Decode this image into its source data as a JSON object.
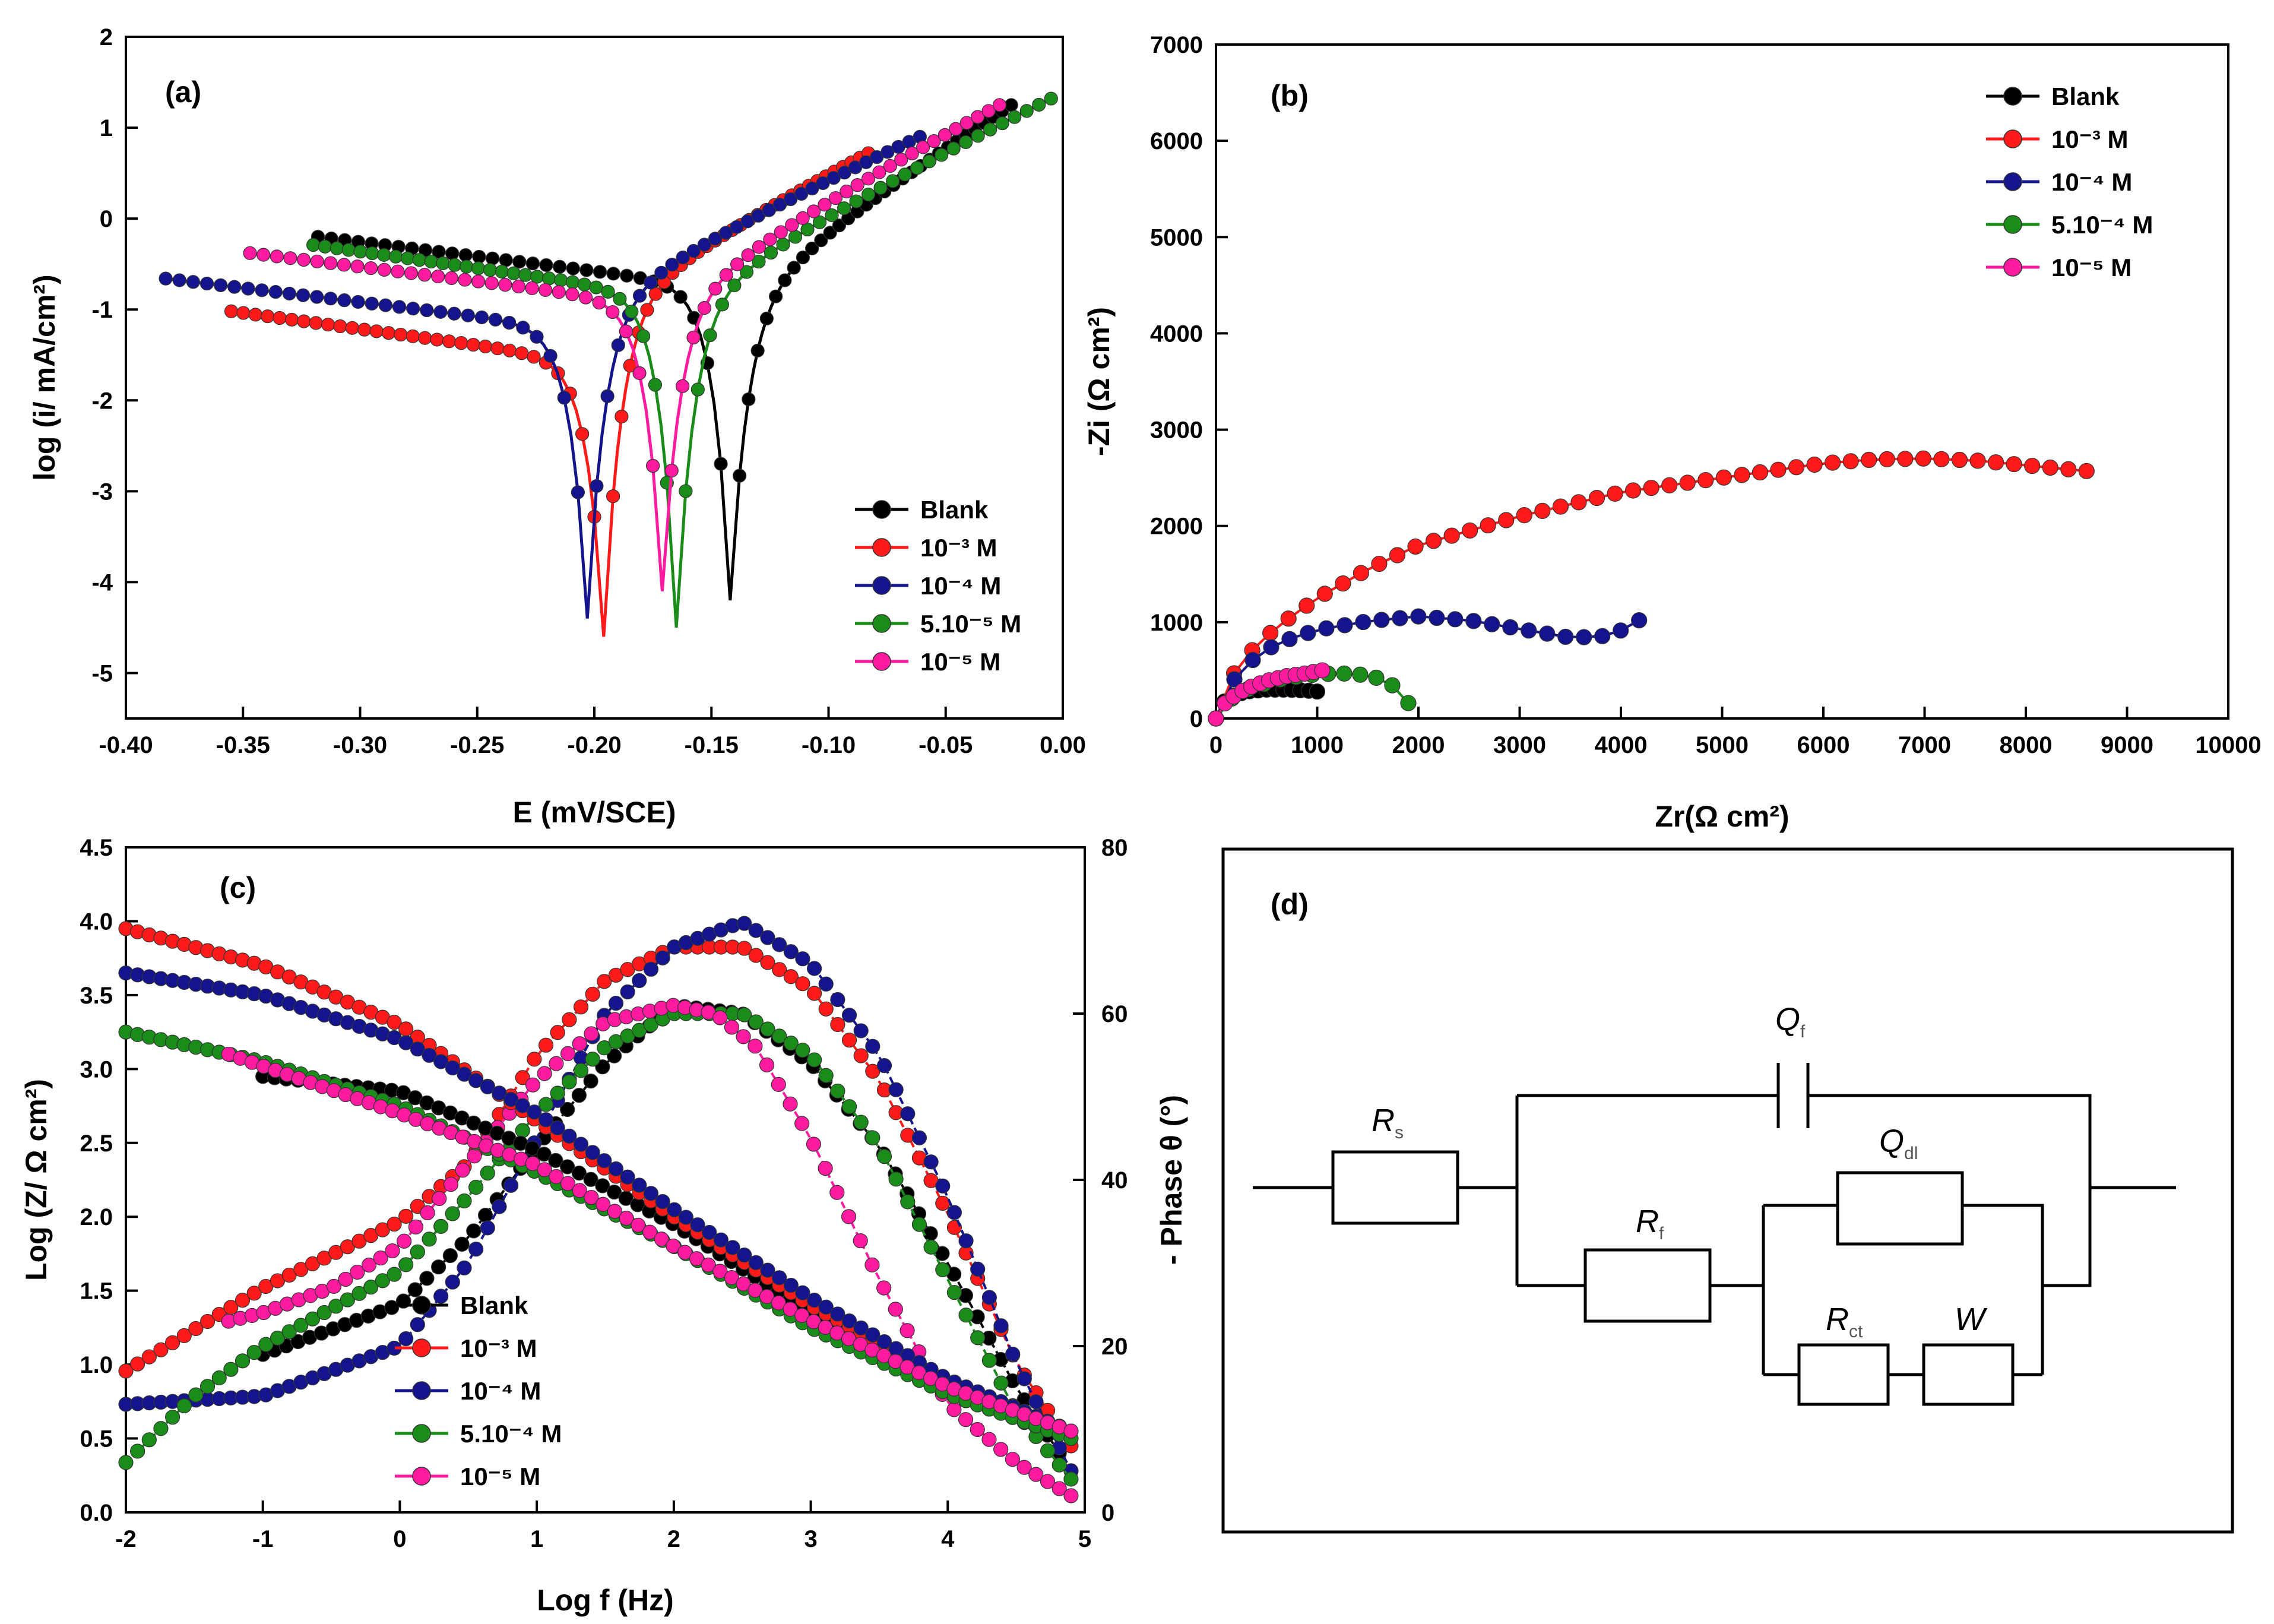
{
  "colors": {
    "Blank": "#000000",
    "1e-3": "#ff1a1a",
    "1e-4": "#14148c",
    "5e-4": "#1a8c1a",
    "1e-5": "#ff1aa0"
  },
  "chart_data": [
    {
      "panel": "(a)",
      "type": "line",
      "title": "(a)",
      "xlabel": "E (mV/SCE)",
      "ylabel": "log (i/ mA/cm²)",
      "xlim": [
        -0.4,
        0.0
      ],
      "ylim": [
        -5.5,
        2.0
      ],
      "xticks": [
        "-0.40",
        "-0.35",
        "-0.30",
        "-0.25",
        "-0.20",
        "-0.15",
        "-0.10",
        "-0.05",
        "0.00"
      ],
      "yticks": [
        "-5",
        "-4",
        "-3",
        "-2",
        "-1",
        "0",
        "1",
        "2"
      ],
      "legend": [
        "Blank",
        "10⁻³ M",
        "10⁻⁴ M",
        "5.10⁻⁵ M",
        "10⁻⁵ M"
      ],
      "series": [
        {
          "name": "Blank",
          "color": "Blank",
          "ecorr": -0.142,
          "start": [
            -0.318,
            -0.2
          ],
          "min": -4.2,
          "end": [
            -0.022,
            1.25
          ]
        },
        {
          "name": "10⁻³ M",
          "color": "1e-3",
          "ecorr": -0.196,
          "start": [
            -0.355,
            -1.02
          ],
          "min": -4.6,
          "end": [
            -0.083,
            0.72
          ]
        },
        {
          "name": "10⁻⁴ M",
          "color": "1e-4",
          "ecorr": -0.203,
          "start": [
            -0.383,
            -0.66
          ],
          "min": -4.4,
          "end": [
            -0.061,
            0.9
          ]
        },
        {
          "name": "5.10⁻⁵ M",
          "color": "5e-4",
          "ecorr": -0.165,
          "start": [
            -0.32,
            -0.29
          ],
          "min": -4.5,
          "end": [
            -0.005,
            1.32
          ]
        },
        {
          "name": "10⁻⁵ M",
          "color": "1e-5",
          "ecorr": -0.171,
          "start": [
            -0.347,
            -0.38
          ],
          "min": -4.1,
          "end": [
            -0.027,
            1.25
          ]
        }
      ]
    },
    {
      "panel": "(b)",
      "type": "line",
      "title": "(b)",
      "xlabel": "Zr(Ω cm²)",
      "ylabel": "-Zi (Ω cm²)",
      "xlim": [
        0,
        10000
      ],
      "ylim": [
        0,
        7000
      ],
      "xticks": [
        "0",
        "1000",
        "2000",
        "3000",
        "4000",
        "5000",
        "6000",
        "7000",
        "8000",
        "9000",
        "10000"
      ],
      "yticks": [
        "0",
        "1000",
        "2000",
        "3000",
        "4000",
        "5000",
        "6000",
        "7000"
      ],
      "legend": [
        "Blank",
        "10⁻³ M",
        "10⁻⁴ M",
        "5.10⁻⁴ M",
        "10⁻⁵ M"
      ],
      "series": [
        {
          "name": "Blank",
          "color": "Blank",
          "x": [
            0,
            50,
            150,
            300,
            500,
            700,
            900,
            1000
          ],
          "y": [
            0,
            150,
            230,
            280,
            300,
            300,
            290,
            280
          ]
        },
        {
          "name": "10⁻³ M",
          "color": "1e-3",
          "x": [
            0,
            100,
            300,
            600,
            1000,
            1500,
            2000,
            3000,
            4000,
            5000,
            6000,
            6500,
            7000,
            7500,
            8000,
            8600
          ],
          "y": [
            0,
            350,
            650,
            950,
            1250,
            1550,
            1800,
            2100,
            2350,
            2500,
            2650,
            2690,
            2700,
            2680,
            2630,
            2570
          ]
        },
        {
          "name": "10⁻⁴ M",
          "color": "1e-4",
          "x": [
            0,
            100,
            300,
            600,
            1000,
            1500,
            2000,
            2500,
            3000,
            3500,
            3800,
            4050,
            4180
          ],
          "y": [
            0,
            300,
            560,
            780,
            920,
            1010,
            1060,
            1020,
            930,
            840,
            850,
            930,
            1020
          ]
        },
        {
          "name": "5.10⁻⁴ M",
          "color": "5e-4",
          "x": [
            0,
            100,
            300,
            600,
            900,
            1200,
            1400,
            1600,
            1750,
            1850,
            1900
          ],
          "y": [
            0,
            170,
            300,
            400,
            450,
            470,
            460,
            420,
            340,
            250,
            160
          ]
        },
        {
          "name": "10⁻⁵ M",
          "color": "1e-5",
          "x": [
            0,
            100,
            300,
            500,
            700,
            900,
            1050
          ],
          "y": [
            0,
            180,
            310,
            390,
            440,
            470,
            500
          ]
        }
      ]
    },
    {
      "panel": "(c)",
      "type": "line",
      "title": "(c)",
      "xlabel": "Log f (Hz)",
      "ylabel": "Log (Z/ Ω cm²)",
      "y2label": "- Phase θ (°)",
      "xlim": [
        -2,
        5
      ],
      "ylim": [
        0.0,
        4.5
      ],
      "y2lim": [
        0,
        80
      ],
      "xticks": [
        "-2",
        "-1",
        "0",
        "1",
        "2",
        "3",
        "4",
        "5"
      ],
      "yticks": [
        "0.0",
        "0.5",
        "1.0",
        "1.5",
        "2.0",
        "2.5",
        "3.0",
        "3.5",
        "4.0",
        "4.5"
      ],
      "y2ticks": [
        "0",
        "20",
        "40",
        "60",
        "80"
      ],
      "legend": [
        "Blank",
        "10⁻³ M",
        "10⁻⁴ M",
        "5.10⁻⁴ M",
        "10⁻⁵ M"
      ],
      "modulus": [
        {
          "name": "Blank",
          "color": "Blank",
          "x": [
            -1,
            0,
            1,
            2,
            3,
            4,
            4.9
          ],
          "y": [
            2.95,
            2.85,
            2.45,
            1.95,
            1.35,
            0.8,
            0.5
          ]
        },
        {
          "name": "10⁻³ M",
          "color": "1e-3",
          "x": [
            -2,
            -1,
            0,
            1,
            2,
            3,
            4,
            4.9
          ],
          "y": [
            3.95,
            3.7,
            3.3,
            2.65,
            2.0,
            1.4,
            0.9,
            0.55
          ]
        },
        {
          "name": "10⁻⁴ M",
          "color": "1e-4",
          "x": [
            -2,
            -1,
            0,
            1,
            2,
            3,
            4,
            4.9
          ],
          "y": [
            3.65,
            3.5,
            3.2,
            2.7,
            2.05,
            1.45,
            0.9,
            0.55
          ]
        },
        {
          "name": "5.10⁻⁴ M",
          "color": "5e-4",
          "x": [
            -2,
            -1,
            0,
            1,
            2,
            3,
            4,
            4.9
          ],
          "y": [
            3.25,
            3.05,
            2.75,
            2.3,
            1.8,
            1.25,
            0.8,
            0.5
          ]
        },
        {
          "name": "10⁻⁵ M",
          "color": "1e-5",
          "x": [
            -1.25,
            0,
            1,
            2,
            3,
            4,
            4.9
          ],
          "y": [
            3.1,
            2.7,
            2.35,
            1.8,
            1.3,
            0.85,
            0.55
          ]
        }
      ],
      "phase": [
        {
          "name": "Blank",
          "color": "Blank",
          "x": [
            -1,
            0,
            0.5,
            1,
            1.5,
            2,
            2.5,
            3,
            3.5,
            4,
            4.5,
            4.9
          ],
          "y": [
            19,
            25,
            33,
            44,
            54,
            61,
            60,
            54,
            44,
            30,
            15,
            5
          ]
        },
        {
          "name": "10⁻³ M",
          "color": "1e-3",
          "x": [
            -2,
            -1.5,
            -1,
            0,
            0.5,
            1,
            1.5,
            2,
            2.5,
            3,
            3.5,
            4,
            4.5,
            4.9
          ],
          "y": [
            17,
            22,
            27,
            35,
            42,
            55,
            64,
            68,
            68,
            63,
            52,
            36,
            18,
            8
          ]
        },
        {
          "name": "10⁻⁴ M",
          "color": "1e-4",
          "x": [
            -2,
            -1,
            0,
            0.5,
            1,
            1.5,
            2,
            2.5,
            3,
            3.5,
            4,
            4.5,
            4.9
          ],
          "y": [
            13,
            14,
            20,
            30,
            45,
            60,
            68,
            71,
            66,
            55,
            38,
            18,
            5
          ]
        },
        {
          "name": "5.10⁻⁴ M",
          "color": "5e-4",
          "x": [
            -2,
            -1.5,
            -1,
            0,
            0.5,
            1,
            1.5,
            2,
            2.5,
            3,
            3.5,
            4,
            4.5,
            4.9
          ],
          "y": [
            6,
            14,
            20,
            29,
            38,
            48,
            56,
            60,
            60,
            55,
            44,
            28,
            12,
            4
          ]
        },
        {
          "name": "10⁻⁵ M",
          "color": "1e-5",
          "x": [
            -1.25,
            -1,
            -0.5,
            0,
            0.5,
            1,
            1.5,
            2,
            2.3,
            2.6,
            3,
            3.5,
            4,
            4.5,
            4.9
          ],
          "y": [
            23,
            24,
            27,
            32,
            42,
            52,
            59,
            61,
            60,
            56,
            45,
            28,
            13,
            6,
            2
          ]
        }
      ]
    },
    {
      "panel": "(d)",
      "type": "diagram",
      "title": "(d)",
      "components": [
        "Qf",
        "Rs",
        "Qdl",
        "Rf",
        "Rct",
        "W"
      ]
    }
  ],
  "circuit": {
    "qf_main": "Q",
    "qf_sub": "f",
    "rs_main": "R",
    "rs_sub": "s",
    "qdl_main": "Q",
    "qdl_sub": "dl",
    "rf_main": "R",
    "rf_sub": "f",
    "rct_main": "R",
    "rct_sub": "ct",
    "w_main": "W"
  }
}
